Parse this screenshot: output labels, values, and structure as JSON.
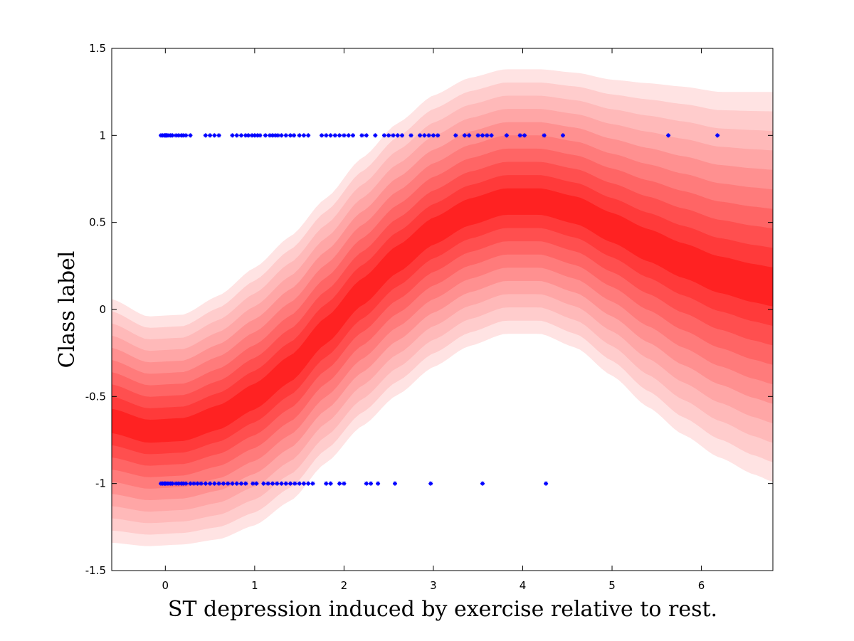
{
  "chart_data": {
    "type": "scatter",
    "title": "",
    "xlabel": "ST depression induced by exercise relative to rest.",
    "ylabel": "Class label",
    "xlim": [
      -0.6,
      6.8
    ],
    "ylim": [
      -1.5,
      1.5
    ],
    "x_ticks": [
      "0",
      "1",
      "2",
      "3",
      "4",
      "5",
      "6"
    ],
    "y_ticks": [
      "1.5",
      "1",
      "0.5",
      "0",
      "-0.5",
      "-1",
      "-1.5"
    ],
    "grid": false,
    "legend": "none",
    "band": {
      "description_note": "",
      "x": [
        -0.6,
        -0.2,
        0.2,
        0.6,
        1.0,
        1.4,
        1.8,
        2.2,
        2.6,
        3.0,
        3.4,
        3.8,
        4.2,
        4.6,
        5.0,
        5.4,
        5.8,
        6.2,
        6.6,
        6.8
      ],
      "mean": [
        -0.64,
        -0.7,
        -0.69,
        -0.62,
        -0.5,
        -0.34,
        -0.12,
        0.1,
        0.29,
        0.45,
        0.56,
        0.62,
        0.62,
        0.57,
        0.47,
        0.37,
        0.28,
        0.2,
        0.15,
        0.13
      ],
      "half_width": [
        0.7,
        0.66,
        0.66,
        0.7,
        0.74,
        0.76,
        0.76,
        0.77,
        0.78,
        0.78,
        0.77,
        0.76,
        0.76,
        0.79,
        0.85,
        0.93,
        1.0,
        1.05,
        1.1,
        1.12
      ],
      "levels": 10,
      "colors": [
        "#ffe3e3",
        "#ffcccc",
        "#ffb9b9",
        "#ffa6a6",
        "#ff9090",
        "#ff7b7b",
        "#ff6565",
        "#ff4f4f",
        "#ff3a3a",
        "#ff2222"
      ]
    },
    "series": [
      {
        "label_y": 1,
        "marker_color": "#0000ff",
        "x": [
          -0.05,
          -0.03,
          -0.01,
          0.0,
          0.01,
          0.02,
          0.04,
          0.06,
          0.08,
          0.12,
          0.15,
          0.18,
          0.2,
          0.23,
          0.28,
          0.45,
          0.5,
          0.55,
          0.6,
          0.75,
          0.8,
          0.85,
          0.9,
          0.93,
          0.97,
          1.0,
          1.03,
          1.06,
          1.12,
          1.17,
          1.2,
          1.23,
          1.26,
          1.3,
          1.35,
          1.4,
          1.44,
          1.5,
          1.55,
          1.6,
          1.75,
          1.8,
          1.85,
          1.9,
          1.95,
          2.0,
          2.05,
          2.1,
          2.2,
          2.25,
          2.35,
          2.45,
          2.5,
          2.55,
          2.6,
          2.65,
          2.75,
          2.85,
          2.9,
          2.95,
          3.0,
          3.05,
          3.25,
          3.35,
          3.4,
          3.5,
          3.55,
          3.6,
          3.65,
          3.82,
          3.97,
          4.02,
          4.24,
          4.45,
          5.63,
          6.18
        ]
      },
      {
        "label_y": -1,
        "marker_color": "#0000ff",
        "x": [
          -0.05,
          -0.03,
          -0.01,
          0.0,
          0.02,
          0.04,
          0.06,
          0.08,
          0.12,
          0.15,
          0.18,
          0.2,
          0.23,
          0.28,
          0.32,
          0.36,
          0.4,
          0.45,
          0.5,
          0.55,
          0.6,
          0.65,
          0.7,
          0.75,
          0.8,
          0.85,
          0.9,
          0.98,
          1.02,
          1.1,
          1.15,
          1.2,
          1.25,
          1.3,
          1.35,
          1.4,
          1.45,
          1.5,
          1.55,
          1.6,
          1.65,
          1.8,
          1.85,
          1.95,
          2.0,
          2.25,
          2.3,
          2.38,
          2.57,
          2.97,
          3.55,
          4.26
        ]
      }
    ]
  }
}
